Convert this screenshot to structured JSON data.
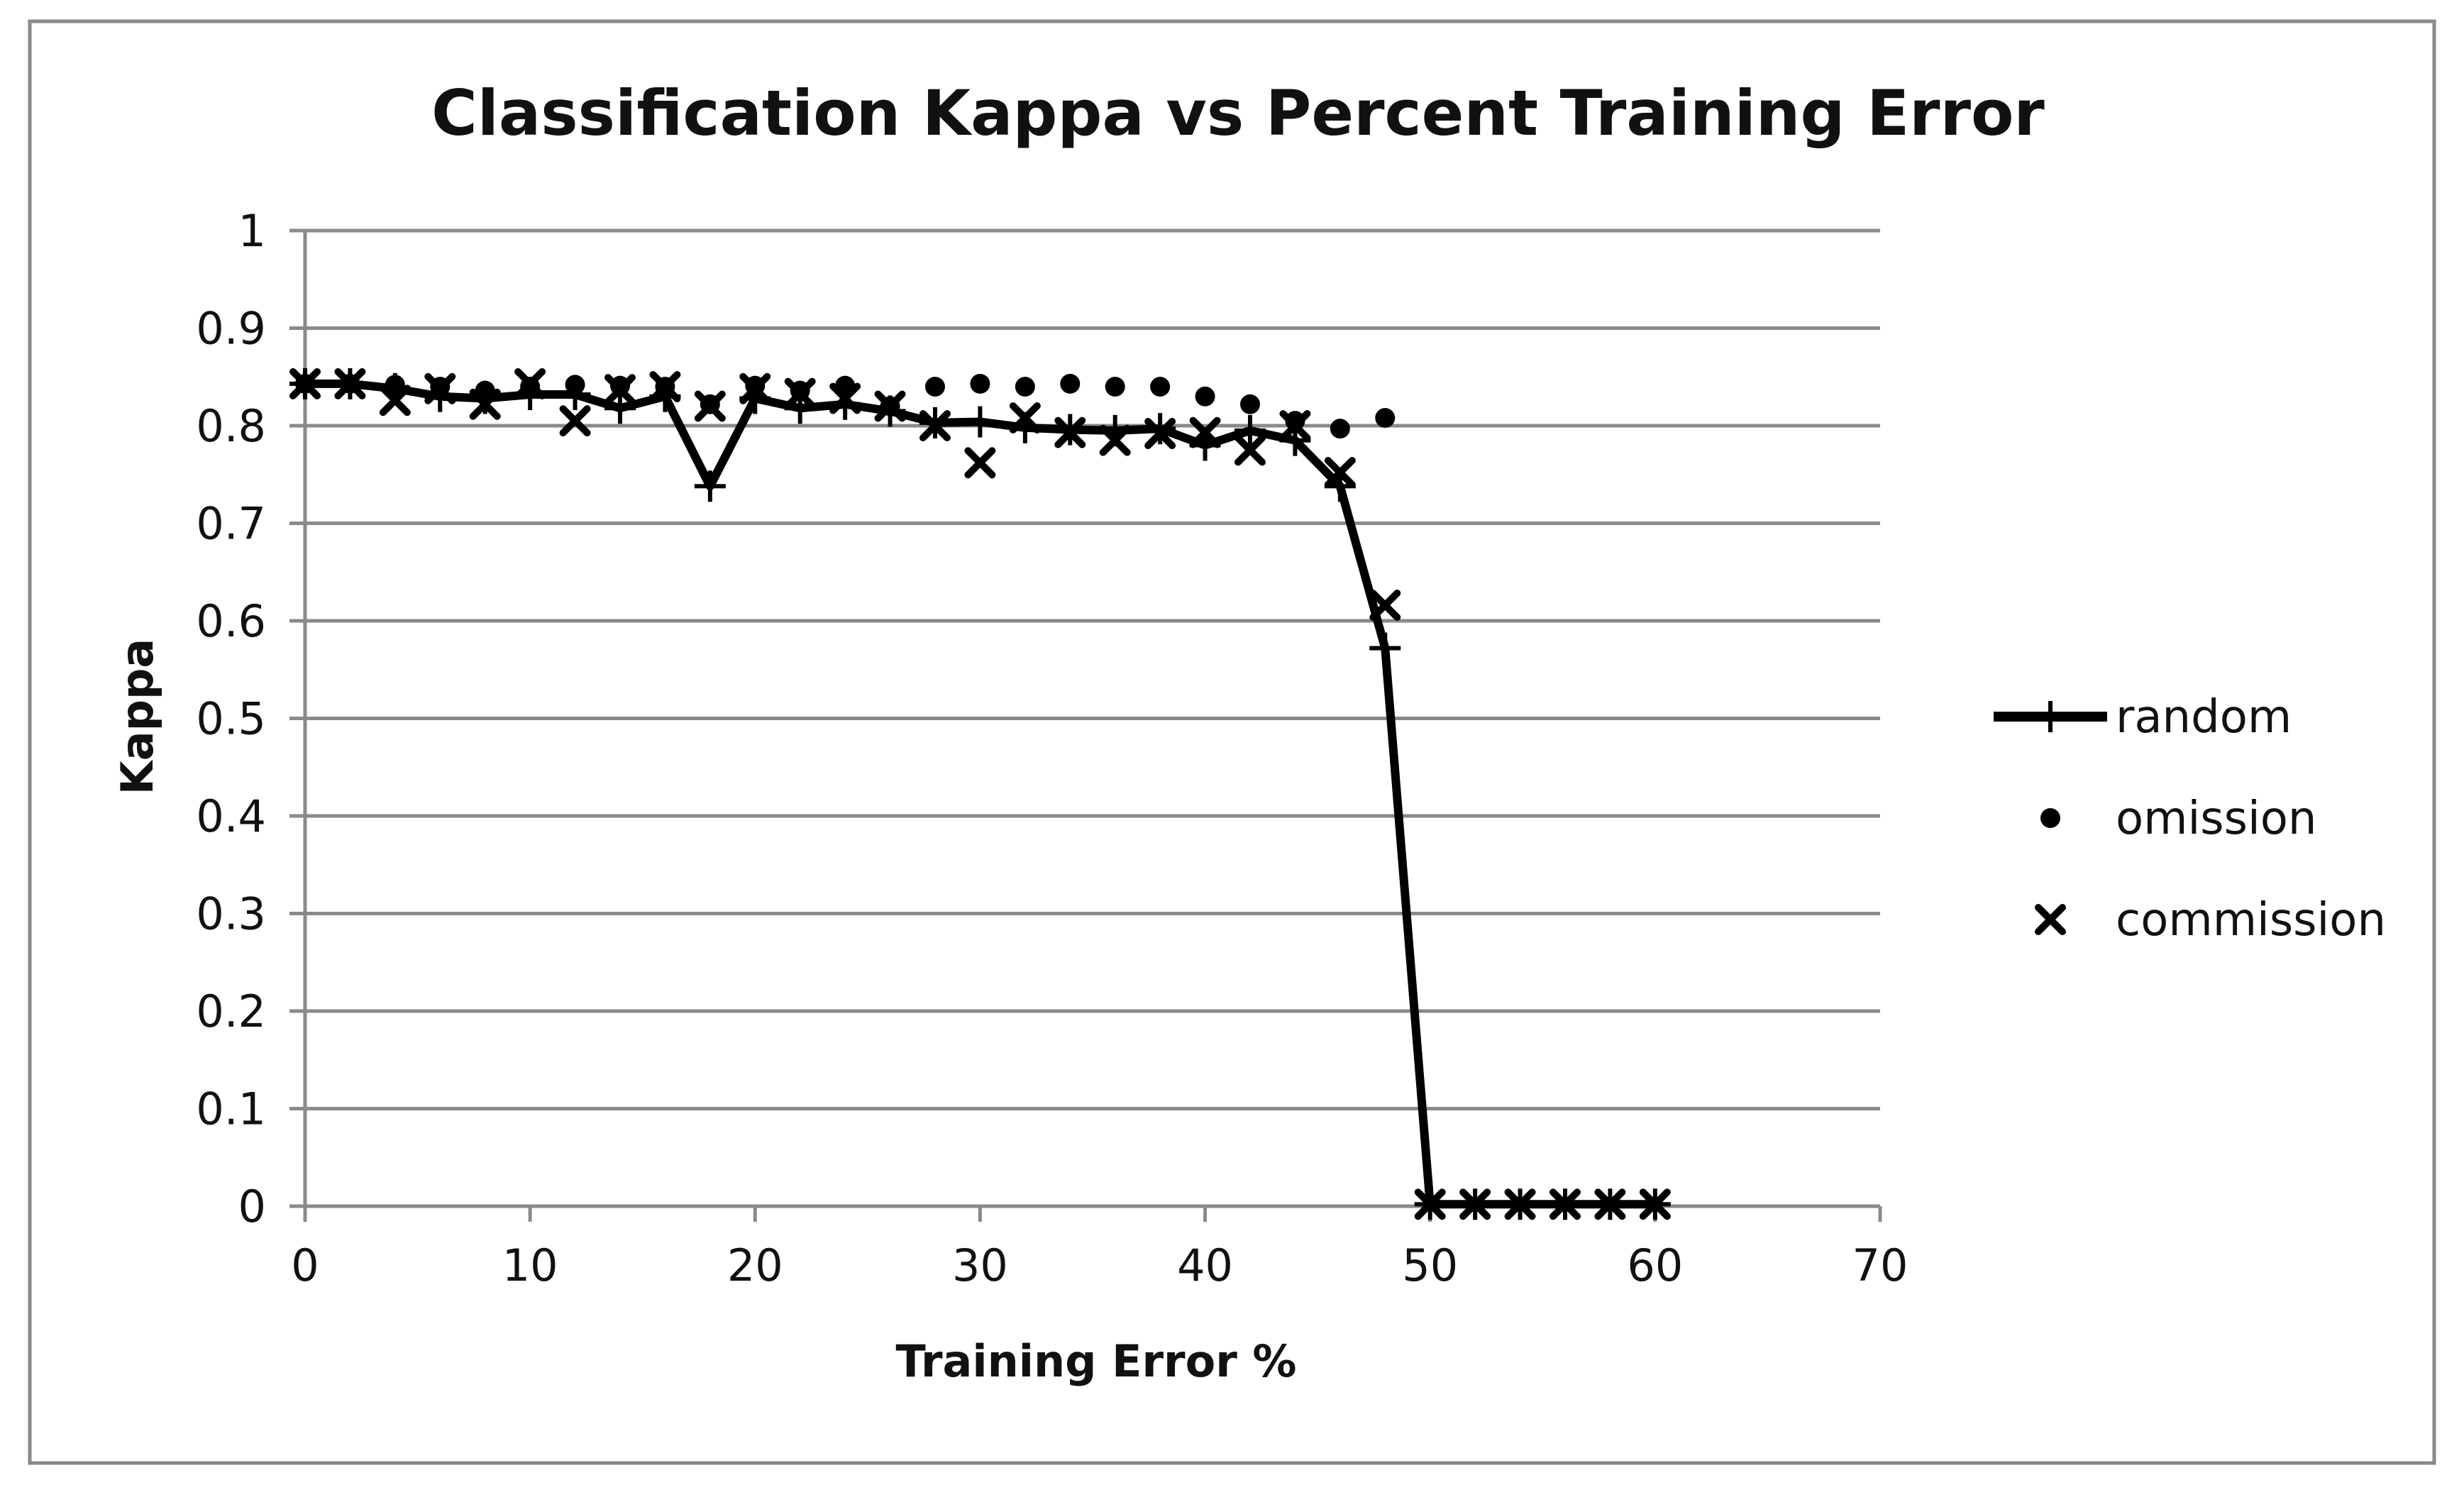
{
  "chart_data": {
    "type": "line",
    "title": "Classification Kappa vs Percent Training Error",
    "xlabel": "Training Error %",
    "ylabel": "Kappa",
    "xlim": [
      0,
      70
    ],
    "ylim": [
      0,
      1
    ],
    "x_ticks": [
      "0",
      "10",
      "20",
      "30",
      "40",
      "50",
      "60",
      "70"
    ],
    "y_ticks": [
      "0",
      "0.1",
      "0.2",
      "0.3",
      "0.4",
      "0.5",
      "0.6",
      "0.7",
      "0.8",
      "0.9",
      "1"
    ],
    "grid": "horizontal",
    "legend_position": "right",
    "series": [
      {
        "name": "random",
        "style": "line-with-plus-markers",
        "color": "#000000",
        "x": [
          0,
          2,
          4,
          6,
          8,
          10,
          12,
          14,
          16,
          18,
          20,
          22,
          24,
          26,
          28,
          30,
          32,
          34,
          36,
          38,
          40,
          42,
          44,
          46,
          48,
          50,
          52,
          54,
          56,
          58,
          60
        ],
        "y": [
          0.843,
          0.843,
          0.838,
          0.83,
          0.828,
          0.832,
          0.832,
          0.818,
          0.83,
          0.738,
          0.828,
          0.818,
          0.822,
          0.815,
          0.803,
          0.804,
          0.798,
          0.796,
          0.795,
          0.797,
          0.78,
          0.795,
          0.785,
          0.738,
          0.572,
          0.002,
          0.002,
          0.002,
          0.002,
          0.002,
          0.002
        ]
      },
      {
        "name": "omission",
        "style": "dot-markers",
        "color": "#000000",
        "x": [
          0,
          2,
          4,
          6,
          8,
          10,
          12,
          14,
          16,
          18,
          20,
          22,
          24,
          26,
          28,
          30,
          32,
          34,
          36,
          38,
          40,
          42,
          44,
          46,
          48
        ],
        "y": [
          0.843,
          0.843,
          0.842,
          0.84,
          0.836,
          0.84,
          0.842,
          0.841,
          0.84,
          0.822,
          0.841,
          0.836,
          0.841,
          0.82,
          0.84,
          0.843,
          0.84,
          0.843,
          0.84,
          0.84,
          0.83,
          0.822,
          0.805,
          0.797,
          0.808
        ]
      },
      {
        "name": "commission",
        "style": "x-markers",
        "color": "#000000",
        "x": [
          0,
          2,
          4,
          6,
          8,
          10,
          12,
          14,
          16,
          18,
          20,
          22,
          24,
          26,
          28,
          30,
          32,
          34,
          36,
          38,
          40,
          42,
          44,
          46,
          48,
          50,
          52,
          54,
          56,
          58,
          60
        ],
        "y": [
          0.843,
          0.843,
          0.826,
          0.838,
          0.822,
          0.843,
          0.805,
          0.837,
          0.84,
          0.82,
          0.838,
          0.833,
          0.828,
          0.82,
          0.8,
          0.762,
          0.808,
          0.793,
          0.785,
          0.792,
          0.793,
          0.775,
          0.8,
          0.752,
          0.616,
          0.002,
          0.002,
          0.002,
          0.002,
          0.002,
          0.002
        ]
      }
    ]
  }
}
